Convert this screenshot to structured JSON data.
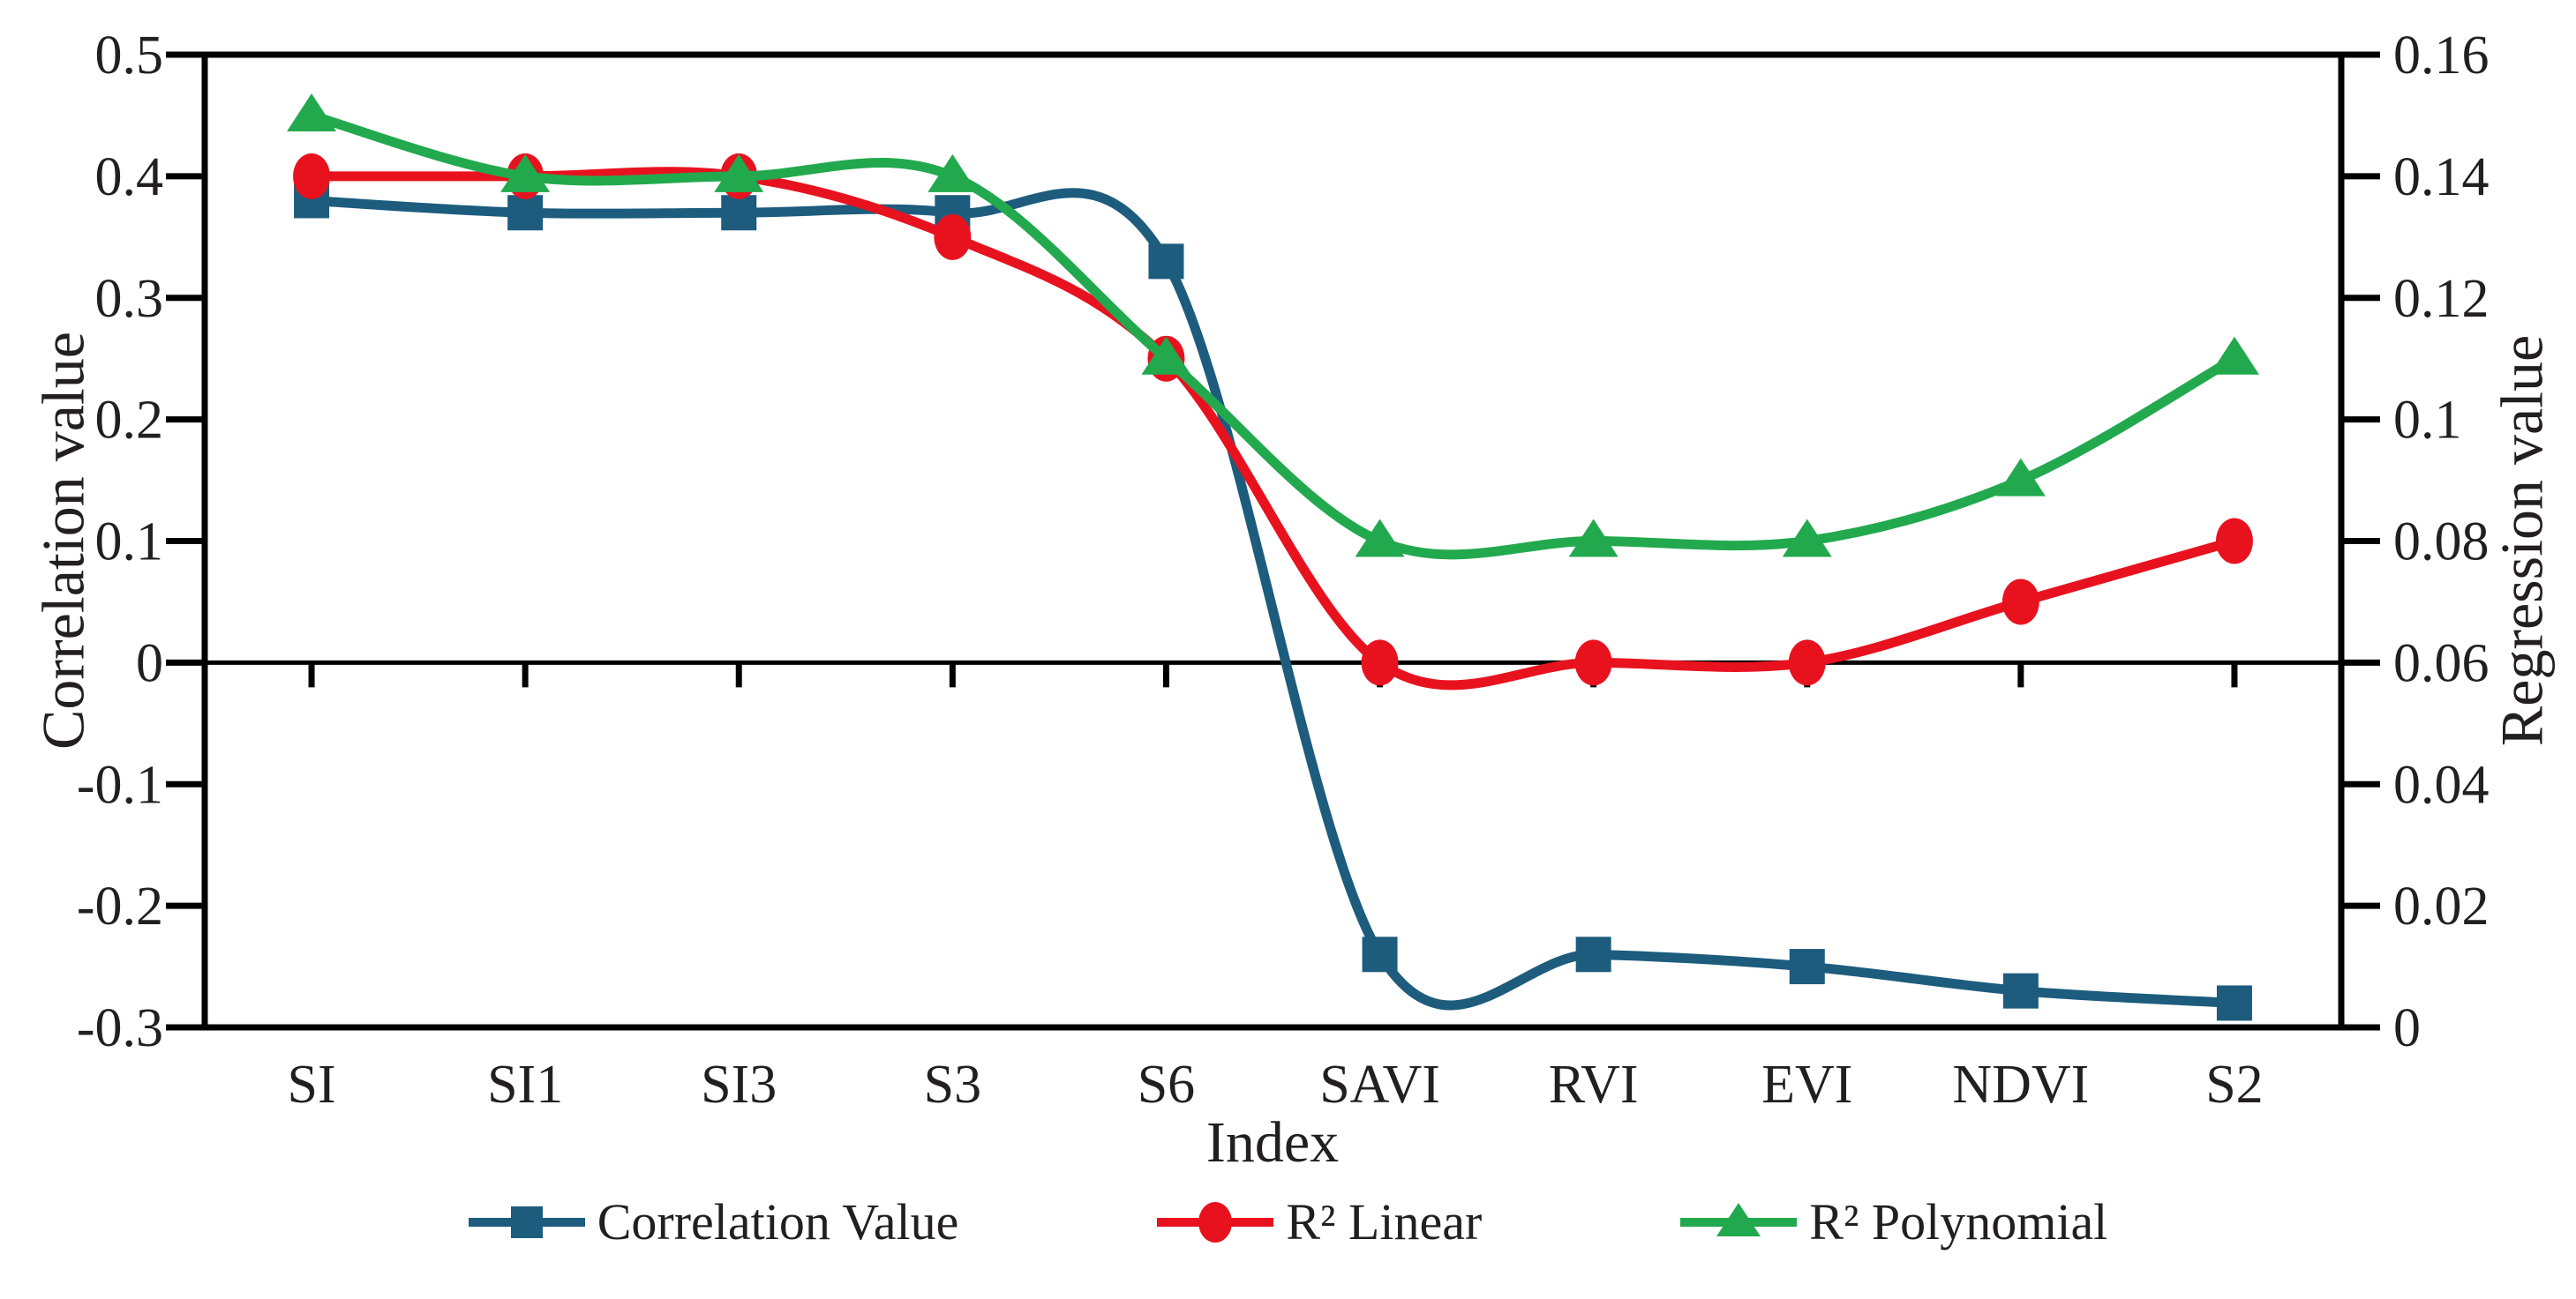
{
  "chart_data": {
    "type": "line",
    "title": "",
    "xlabel": "Index",
    "ylabel_left": "Correlation value",
    "ylabel_right": "Regression value",
    "categories": [
      "SI",
      "SI1",
      "SI3",
      "S3",
      "S6",
      "SAVI",
      "RVI",
      "EVI",
      "NDVI",
      "S2"
    ],
    "left_axis": {
      "label": "Correlation value",
      "min": -0.3,
      "max": 0.5,
      "tick_step": 0.1,
      "tick_labels": [
        "0.5",
        "0.4",
        "0.3",
        "0.2",
        "0.1",
        "0",
        "-0.1",
        "-0.2",
        "-0.3"
      ]
    },
    "right_axis": {
      "label": "Regression value",
      "min": 0,
      "max": 0.16,
      "tick_step": 0.02,
      "tick_labels": [
        "0.16",
        "0.14",
        "0.12",
        "0.1",
        "0.08",
        "0.06",
        "0.04",
        "0.02",
        "0"
      ]
    },
    "series": [
      {
        "name": "Correlation Value",
        "axis": "left",
        "color": "#1d5c7d",
        "marker": "square",
        "values": [
          0.38,
          0.37,
          0.37,
          0.37,
          0.33,
          -0.24,
          -0.24,
          -0.25,
          -0.27,
          -0.28
        ]
      },
      {
        "name": "R² Linear",
        "axis": "right",
        "color": "#e8121f",
        "marker": "circle",
        "values": [
          0.14,
          0.14,
          0.14,
          0.13,
          0.11,
          0.06,
          0.06,
          0.06,
          0.07,
          0.08
        ]
      },
      {
        "name": "R² Polynomial",
        "axis": "right",
        "color": "#22a94e",
        "marker": "triangle",
        "values": [
          0.15,
          0.14,
          0.14,
          0.14,
          0.11,
          0.08,
          0.08,
          0.08,
          0.09,
          0.11
        ]
      }
    ],
    "axis_color": "#000000",
    "text_color": "#231f20",
    "grid": false,
    "zero_line": true,
    "smooth_lines": true,
    "legend_position": "bottom"
  }
}
